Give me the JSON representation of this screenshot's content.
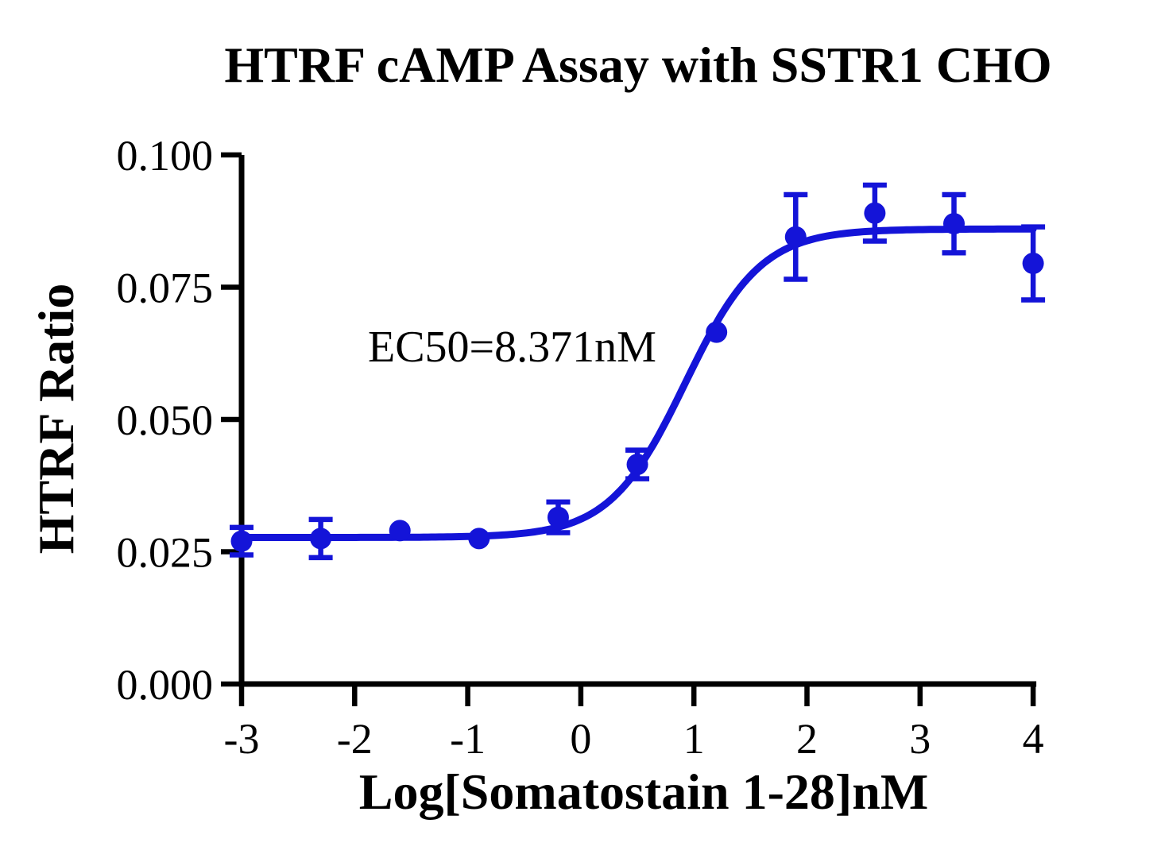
{
  "chart_data": {
    "type": "scatter",
    "title": "HTRF cAMP Assay with SSTR1 CHO",
    "xlabel": "Log[Somatostain 1-28]nM",
    "ylabel": "HTRF Ratio",
    "xlim": [
      -3,
      4
    ],
    "ylim": [
      0,
      0.1
    ],
    "x_ticks": [
      "-3",
      "-2",
      "-1",
      "0",
      "1",
      "2",
      "3",
      "4"
    ],
    "x_tick_values": [
      -3,
      -2,
      -1,
      0,
      1,
      2,
      3,
      4
    ],
    "y_ticks": [
      "0.000",
      "0.025",
      "0.050",
      "0.075",
      "0.100"
    ],
    "y_tick_values": [
      0,
      0.025,
      0.05,
      0.075,
      0.1
    ],
    "grid": false,
    "legend": "none",
    "series": [
      {
        "marker": "circle",
        "x": [
          -3.0,
          -2.3,
          -1.6,
          -0.9,
          -0.2,
          0.5,
          1.2,
          1.9,
          2.6,
          3.3,
          4.0
        ],
        "y": [
          0.027,
          0.0275,
          0.029,
          0.0275,
          0.0315,
          0.0415,
          0.0665,
          0.0845,
          0.089,
          0.087,
          0.0795
        ],
        "y_err": [
          0.0026,
          0.0036,
          0,
          0,
          0.0029,
          0.0027,
          0,
          0.008,
          0.0053,
          0.0055,
          0.0069
        ]
      }
    ],
    "fit_curve": {
      "model": "sigmoidal-4PL",
      "bottom": 0.0277,
      "top": 0.086,
      "logEC50": 0.9228,
      "hillslope": 1.3
    },
    "annotation": {
      "text": "EC50=8.371nM"
    },
    "ec50_nM": 8.371,
    "colors": {
      "series": "#1414d8",
      "axis": "#000000",
      "text": "#000000",
      "background": "#ffffff"
    }
  }
}
